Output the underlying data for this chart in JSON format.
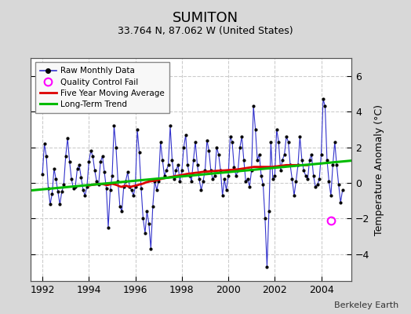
{
  "title": "SUMITON",
  "subtitle": "33.764 N, 87.062 W (United States)",
  "ylabel": "Temperature Anomaly (°C)",
  "credit": "Berkeley Earth",
  "xlim": [
    1991.5,
    2005.3
  ],
  "ylim": [
    -5.5,
    7.0
  ],
  "yticks": [
    -4,
    -2,
    0,
    2,
    4,
    6
  ],
  "xticks": [
    1992,
    1994,
    1996,
    1998,
    2000,
    2002,
    2004
  ],
  "fig_bg_color": "#d8d8d8",
  "plot_bg_color": "#ffffff",
  "raw_line_color": "#3333cc",
  "raw_marker_color": "#000000",
  "ma_color": "#dd0000",
  "trend_color": "#00bb00",
  "qc_fail_color": "#ff00ff",
  "qc_fail_x": 2004.42,
  "qc_fail_y": -2.1,
  "trend_x0": 1991.5,
  "trend_x1": 2005.3,
  "trend_y0": -0.42,
  "trend_y1": 1.25,
  "raw_data_x": [
    1992.0,
    1992.083,
    1992.167,
    1992.25,
    1992.333,
    1992.417,
    1992.5,
    1992.583,
    1992.667,
    1992.75,
    1992.833,
    1992.917,
    1993.0,
    1993.083,
    1993.167,
    1993.25,
    1993.333,
    1993.417,
    1993.5,
    1993.583,
    1993.667,
    1993.75,
    1993.833,
    1993.917,
    1994.0,
    1994.083,
    1994.167,
    1994.25,
    1994.333,
    1994.417,
    1994.5,
    1994.583,
    1994.667,
    1994.75,
    1994.833,
    1994.917,
    1995.0,
    1995.083,
    1995.167,
    1995.25,
    1995.333,
    1995.417,
    1995.5,
    1995.583,
    1995.667,
    1995.75,
    1995.833,
    1995.917,
    1996.0,
    1996.083,
    1996.167,
    1996.25,
    1996.333,
    1996.417,
    1996.5,
    1996.583,
    1996.667,
    1996.75,
    1996.833,
    1996.917,
    1997.0,
    1997.083,
    1997.167,
    1997.25,
    1997.333,
    1997.417,
    1997.5,
    1997.583,
    1997.667,
    1997.75,
    1997.833,
    1997.917,
    1998.0,
    1998.083,
    1998.167,
    1998.25,
    1998.333,
    1998.417,
    1998.5,
    1998.583,
    1998.667,
    1998.75,
    1998.833,
    1998.917,
    1999.0,
    1999.083,
    1999.167,
    1999.25,
    1999.333,
    1999.417,
    1999.5,
    1999.583,
    1999.667,
    1999.75,
    1999.833,
    1999.917,
    2000.0,
    2000.083,
    2000.167,
    2000.25,
    2000.333,
    2000.417,
    2000.5,
    2000.583,
    2000.667,
    2000.75,
    2000.833,
    2000.917,
    2001.0,
    2001.083,
    2001.167,
    2001.25,
    2001.333,
    2001.417,
    2001.5,
    2001.583,
    2001.667,
    2001.75,
    2001.833,
    2001.917,
    2002.0,
    2002.083,
    2002.167,
    2002.25,
    2002.333,
    2002.417,
    2002.5,
    2002.583,
    2002.667,
    2002.75,
    2002.833,
    2002.917,
    2003.0,
    2003.083,
    2003.167,
    2003.25,
    2003.333,
    2003.417,
    2003.5,
    2003.583,
    2003.667,
    2003.75,
    2003.833,
    2003.917,
    2004.0,
    2004.083,
    2004.167,
    2004.25,
    2004.333,
    2004.417,
    2004.5,
    2004.583,
    2004.667,
    2004.75,
    2004.833,
    2004.917
  ],
  "raw_data_y": [
    0.5,
    2.2,
    1.5,
    -0.3,
    -1.2,
    -0.6,
    0.8,
    0.2,
    -0.5,
    -1.2,
    -0.5,
    -0.1,
    1.5,
    2.5,
    1.2,
    0.2,
    -0.3,
    -0.2,
    0.8,
    1.0,
    0.3,
    -0.4,
    -0.7,
    -0.2,
    1.2,
    1.8,
    1.5,
    0.7,
    0.1,
    -0.1,
    1.2,
    1.5,
    0.6,
    -0.3,
    -2.5,
    -0.4,
    0.4,
    3.2,
    2.0,
    0.1,
    -1.3,
    -1.6,
    -0.2,
    0.1,
    0.6,
    -0.2,
    -0.4,
    -0.7,
    -0.2,
    3.0,
    1.7,
    -0.3,
    -2.0,
    -2.8,
    -1.6,
    -2.3,
    -3.7,
    -1.3,
    0.1,
    -0.4,
    0.1,
    2.3,
    1.3,
    0.4,
    0.7,
    1.0,
    3.2,
    1.3,
    0.2,
    0.7,
    1.0,
    0.1,
    0.7,
    2.0,
    2.7,
    1.0,
    0.4,
    0.1,
    1.3,
    2.3,
    1.0,
    0.2,
    -0.4,
    0.1,
    0.7,
    2.4,
    1.8,
    0.7,
    0.2,
    0.4,
    2.0,
    1.6,
    0.7,
    -0.7,
    0.2,
    -0.4,
    0.4,
    2.6,
    2.3,
    0.9,
    0.4,
    0.7,
    2.0,
    2.6,
    1.3,
    0.1,
    0.2,
    -0.2,
    0.7,
    4.3,
    3.0,
    1.3,
    1.6,
    0.4,
    -0.1,
    -2.0,
    -4.7,
    -1.6,
    2.3,
    0.2,
    0.4,
    3.0,
    2.3,
    0.7,
    1.3,
    1.6,
    2.6,
    2.3,
    1.0,
    0.2,
    -0.7,
    0.1,
    1.0,
    2.6,
    1.3,
    0.7,
    0.4,
    0.2,
    1.3,
    1.6,
    0.4,
    -0.2,
    -0.1,
    0.2,
    1.6,
    4.7,
    4.3,
    1.3,
    0.1,
    -0.7,
    1.0,
    2.3,
    1.0,
    -0.1,
    -1.1,
    -0.4
  ],
  "ma_data_x": [
    1994.0,
    1994.1,
    1994.2,
    1994.3,
    1994.4,
    1994.5,
    1994.6,
    1994.7,
    1994.8,
    1994.9,
    1995.0,
    1995.1,
    1995.2,
    1995.3,
    1995.4,
    1995.5,
    1995.6,
    1995.7,
    1995.8,
    1995.9,
    1996.0,
    1996.1,
    1996.2,
    1996.3,
    1996.4,
    1996.5,
    1996.6,
    1996.7,
    1996.8,
    1996.9,
    1997.0,
    1997.1,
    1997.2,
    1997.3,
    1997.4,
    1997.5,
    1997.6,
    1997.7,
    1997.8,
    1997.9,
    1998.0,
    1998.1,
    1998.2,
    1998.3,
    1998.4,
    1998.5,
    1998.6,
    1998.7,
    1998.8,
    1998.9,
    1999.0,
    1999.1,
    1999.2,
    1999.3,
    1999.4,
    1999.5,
    1999.6,
    1999.7,
    1999.8,
    1999.9,
    2000.0,
    2000.1,
    2000.2,
    2000.3,
    2000.4,
    2000.5,
    2000.6,
    2000.7,
    2000.8,
    2000.9,
    2001.0,
    2001.1,
    2001.2,
    2001.3,
    2001.4,
    2001.5,
    2001.6,
    2001.7,
    2001.8,
    2001.9,
    2002.0,
    2002.1,
    2002.2,
    2002.3,
    2002.4,
    2002.5,
    2002.6,
    2002.7,
    2002.8,
    2002.9,
    2003.0,
    2003.1,
    2003.2,
    2003.3,
    2003.4
  ],
  "ma_data_y": [
    -0.15,
    -0.12,
    -0.1,
    -0.08,
    -0.06,
    -0.05,
    -0.07,
    -0.1,
    -0.12,
    -0.08,
    -0.05,
    -0.08,
    -0.12,
    -0.18,
    -0.22,
    -0.18,
    -0.15,
    -0.2,
    -0.22,
    -0.18,
    -0.15,
    -0.12,
    -0.08,
    -0.05,
    0.0,
    0.05,
    0.08,
    0.1,
    0.12,
    0.15,
    0.18,
    0.22,
    0.25,
    0.28,
    0.3,
    0.33,
    0.35,
    0.38,
    0.4,
    0.42,
    0.45,
    0.47,
    0.5,
    0.52,
    0.53,
    0.55,
    0.57,
    0.58,
    0.6,
    0.62,
    0.63,
    0.64,
    0.65,
    0.66,
    0.67,
    0.68,
    0.69,
    0.7,
    0.7,
    0.71,
    0.72,
    0.73,
    0.74,
    0.75,
    0.76,
    0.78,
    0.8,
    0.82,
    0.84,
    0.86,
    0.88,
    0.9,
    0.9,
    0.9,
    0.9,
    0.9,
    0.9,
    0.9,
    0.9,
    0.9,
    0.92,
    0.93,
    0.95,
    0.97,
    0.98,
    1.0,
    1.0,
    1.0,
    1.0,
    1.0,
    1.0,
    1.0,
    1.0,
    1.0,
    1.0
  ]
}
